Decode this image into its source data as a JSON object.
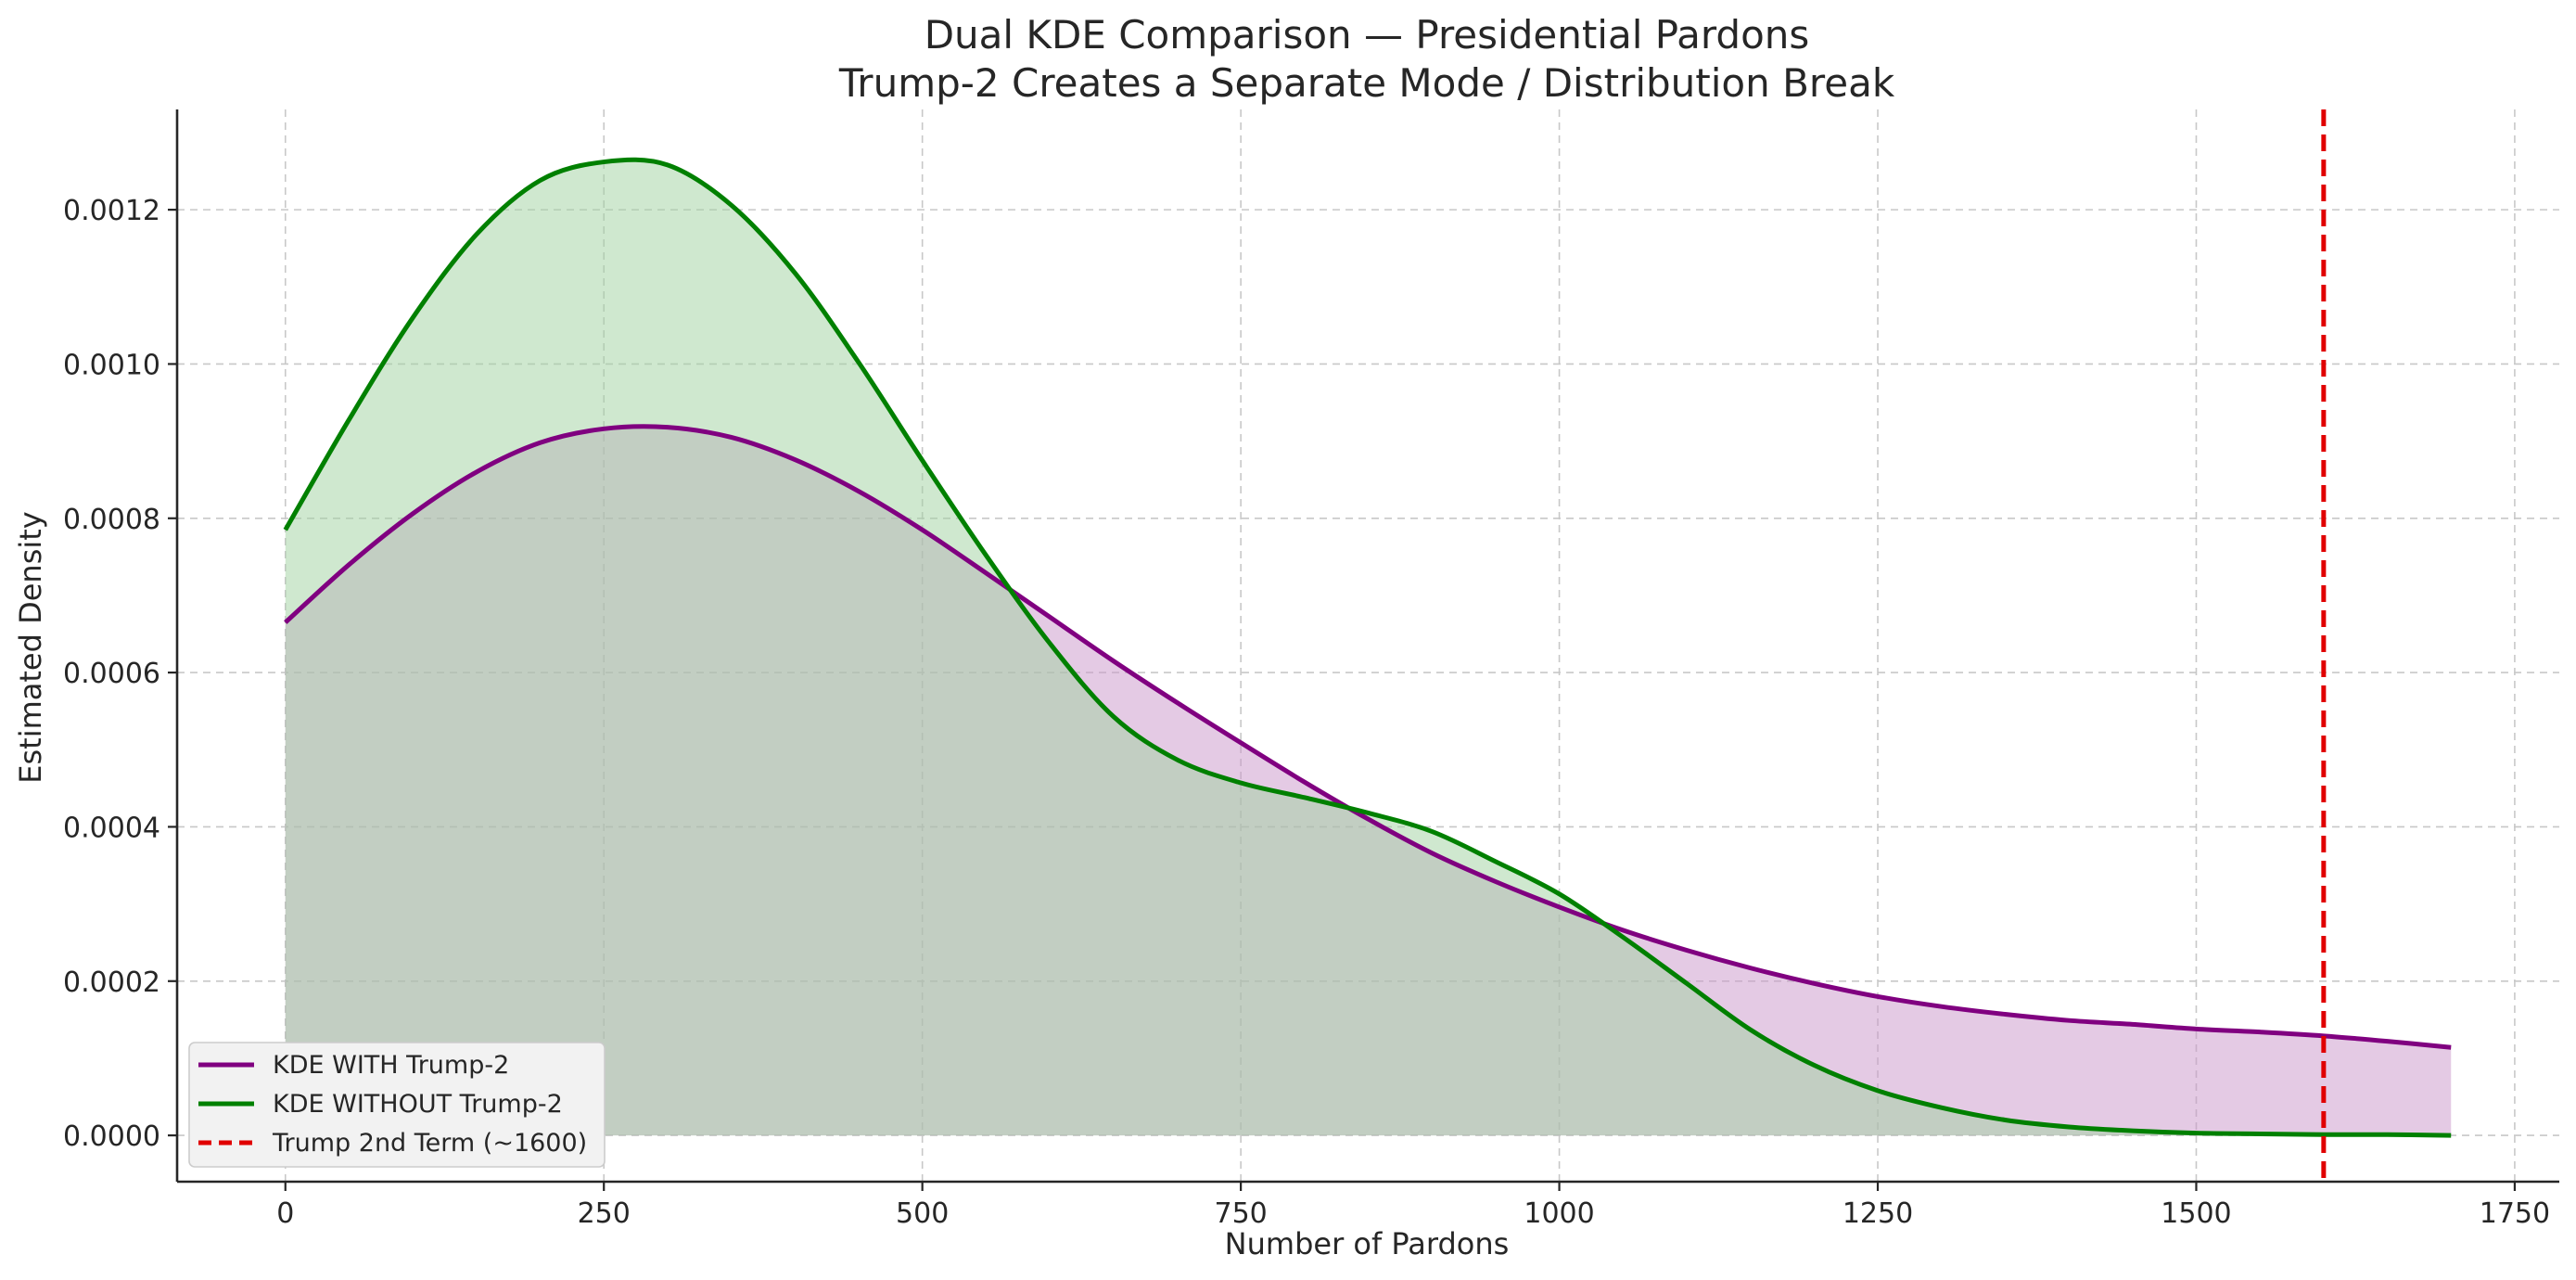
{
  "chart_data": {
    "type": "area",
    "title": "Dual KDE Comparison — Presidential Pardons",
    "subtitle": "Trump-2 Creates a Separate Mode / Distribution Break",
    "xlabel": "Number of Pardons",
    "ylabel": "Estimated Density",
    "xlim": [
      -85,
      1785
    ],
    "ylim": [
      -6e-05,
      0.00133
    ],
    "xticks": [
      0,
      250,
      500,
      750,
      1000,
      1250,
      1500,
      1750
    ],
    "xtick_labels": [
      "0",
      "250",
      "500",
      "750",
      "1000",
      "1250",
      "1500",
      "1750"
    ],
    "yticks": [
      0.0,
      0.0002,
      0.0004,
      0.0006,
      0.0008,
      0.001,
      0.0012
    ],
    "ytick_labels": [
      "0.0000",
      "0.0002",
      "0.0004",
      "0.0006",
      "0.0008",
      "0.0010",
      "0.0012"
    ],
    "grid": true,
    "legend_position": "bottom-left",
    "x": [
      0,
      50,
      100,
      150,
      200,
      250,
      300,
      350,
      400,
      450,
      500,
      550,
      600,
      650,
      700,
      750,
      800,
      850,
      900,
      950,
      1000,
      1050,
      1100,
      1150,
      1200,
      1250,
      1300,
      1350,
      1400,
      1450,
      1500,
      1550,
      1600,
      1650,
      1700
    ],
    "series": [
      {
        "name": "KDE WITH Trump-2",
        "color": "#800080",
        "fill": "#c996c9",
        "values": [
          0.000665,
          0.00074,
          0.000806,
          0.00086,
          0.000898,
          0.000916,
          0.000918,
          0.000905,
          0.000876,
          0.000835,
          0.000785,
          0.000729,
          0.000672,
          0.000615,
          0.000561,
          0.000509,
          0.000458,
          0.00041,
          0.000366,
          0.000329,
          0.000296,
          0.000266,
          0.00024,
          0.000217,
          0.000197,
          0.00018,
          0.000167,
          0.000157,
          0.000149,
          0.000144,
          0.000138,
          0.000134,
          0.000129,
          0.000122,
          0.000114
        ]
      },
      {
        "name": "KDE WITHOUT Trump-2",
        "color": "#008000",
        "fill": "#9fd19f",
        "values": [
          0.000785,
          0.000928,
          0.00106,
          0.001168,
          0.001238,
          0.001262,
          0.001258,
          0.001206,
          0.001118,
          0.001002,
          0.000875,
          0.000752,
          0.000638,
          0.000543,
          0.000487,
          0.000457,
          0.000438,
          0.000418,
          0.000394,
          0.000355,
          0.000313,
          0.000257,
          0.000197,
          0.000137,
          9.1e-05,
          5.8e-05,
          3.6e-05,
          2e-05,
          1.1e-05,
          6e-06,
          3e-06,
          2e-06,
          1e-06,
          1e-06,
          0.0
        ]
      }
    ],
    "reference_line": {
      "name": "Trump 2nd Term (~1600)",
      "x": 1600,
      "color": "#e00000",
      "style": "dashed"
    }
  }
}
